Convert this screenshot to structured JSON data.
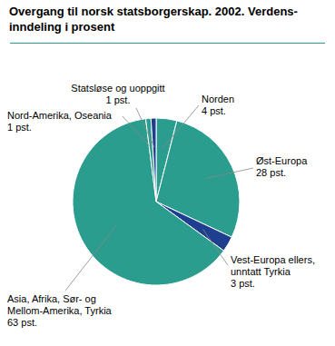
{
  "chart_data": {
    "type": "pie",
    "title": "Overgang til norsk statsborgerskap. 2002. Verdens-\ninndeling i prosent",
    "categories": [
      "Norden",
      "Øst-Europa",
      "Vest-Europa ellers,\nunntatt Tyrkia",
      "Asia, Afrika, Sør- og\nMellom-Amerika, Tyrkia",
      "Nord-Amerika, Oseania",
      "Statsløse og uoppgitt"
    ],
    "values": [
      4,
      28,
      3,
      63,
      1,
      1
    ],
    "value_labels": [
      "4 pst.",
      "28 pst.",
      "3 pst.",
      "63 pst.",
      "1 pst.",
      "1 pst."
    ],
    "colors": [
      "#2a9d8f",
      "#2a9d8f",
      "#1e3f8f",
      "#2a9d8f",
      "#2a9d8f",
      "#1e3f8f"
    ],
    "data_labels": true
  }
}
